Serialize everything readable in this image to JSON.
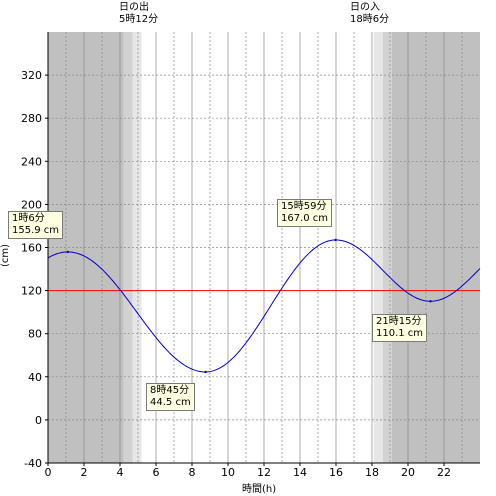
{
  "chart_data": {
    "type": "line",
    "xlabel": "時間(h)",
    "ylabel": "(cm)",
    "xlim": [
      0,
      24
    ],
    "ylim": [
      -40,
      360
    ],
    "x_ticks": [
      "0",
      "2",
      "4",
      "6",
      "8",
      "10",
      "12",
      "14",
      "16",
      "18",
      "20",
      "22"
    ],
    "y_ticks": [
      "-40",
      "0",
      "40",
      "80",
      "120",
      "160",
      "200",
      "240",
      "280",
      "320"
    ],
    "grid": true,
    "reference_line": {
      "value": 120,
      "color": "#ff0000"
    },
    "series": [
      {
        "color": "#0000cc",
        "extrema": [
          {
            "t": 1.1,
            "v": 155.9
          },
          {
            "t": 8.75,
            "v": 44.5
          },
          {
            "t": 15.983,
            "v": 167.0
          },
          {
            "t": 21.25,
            "v": 110.1
          }
        ],
        "start": 150,
        "end": 143
      }
    ],
    "annotations": [
      {
        "line1": "1時6分",
        "line2": "155.9 cm"
      },
      {
        "line1": "8時45分",
        "line2": "44.5 cm"
      },
      {
        "line1": "15時59分",
        "line2": "167.0 cm"
      },
      {
        "line1": "21時15分",
        "line2": "110.1 cm"
      }
    ],
    "sunrise": {
      "title": "日の出",
      "time": "5時12分",
      "t": 5.2
    },
    "sunset": {
      "title": "日の入",
      "time": "18時6分",
      "t": 18.1
    },
    "colors": {
      "night": "#c0c0c0",
      "twilight_dark": "#d2d2d2",
      "twilight_light": "#e6e6e6",
      "day": "#ffffff"
    }
  }
}
